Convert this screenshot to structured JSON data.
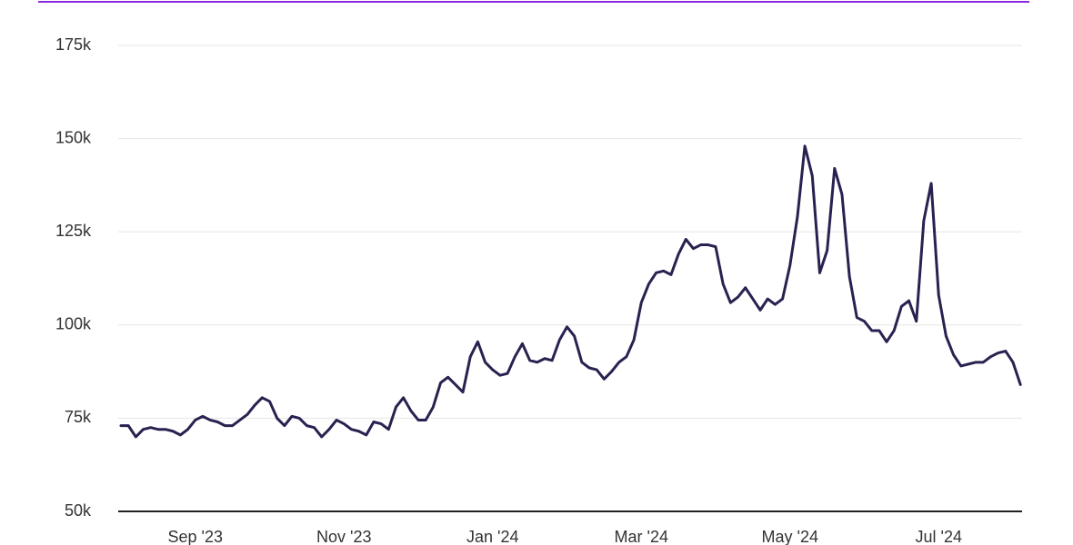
{
  "chart_data": {
    "type": "line",
    "categories": [
      null,
      null,
      null,
      null,
      null,
      null,
      null,
      null,
      null,
      null,
      "Sep '23",
      null,
      null,
      null,
      null,
      null,
      null,
      null,
      null,
      null,
      null,
      null,
      null,
      null,
      null,
      null,
      null,
      null,
      null,
      null,
      "Nov '23",
      null,
      null,
      null,
      null,
      null,
      null,
      null,
      null,
      null,
      null,
      null,
      null,
      null,
      null,
      null,
      null,
      null,
      null,
      null,
      "Jan '24",
      null,
      null,
      null,
      null,
      null,
      null,
      null,
      null,
      null,
      null,
      null,
      null,
      null,
      null,
      null,
      null,
      null,
      null,
      null,
      "Mar '24",
      null,
      null,
      null,
      null,
      null,
      null,
      null,
      null,
      null,
      null,
      null,
      null,
      null,
      null,
      null,
      null,
      null,
      null,
      null,
      "May '24",
      null,
      null,
      null,
      null,
      null,
      null,
      null,
      null,
      null,
      null,
      null,
      null,
      null,
      null,
      null,
      null,
      null,
      null,
      null,
      "Jul '24",
      null,
      null,
      null,
      null,
      null,
      null,
      null,
      null,
      null,
      null,
      null
    ],
    "series": [
      {
        "color": "#2a2150",
        "values": [
          73000,
          73000,
          70000,
          72000,
          72500,
          72000,
          72000,
          71500,
          70500,
          72000,
          74500,
          75500,
          74500,
          74000,
          73000,
          73000,
          74500,
          76000,
          78500,
          80500,
          79500,
          75000,
          73000,
          75500,
          75000,
          73000,
          72500,
          70000,
          72000,
          74500,
          73500,
          72000,
          71500,
          70500,
          74000,
          73500,
          72000,
          78000,
          80500,
          77000,
          74500,
          74500,
          78000,
          84500,
          86000,
          84000,
          82000,
          91500,
          95500,
          90000,
          88000,
          86500,
          87000,
          91500,
          95000,
          90500,
          90000,
          91000,
          90500,
          96000,
          99500,
          97000,
          90000,
          88500,
          88000,
          85500,
          87500,
          90000,
          91500,
          96000,
          106000,
          111000,
          114000,
          114500,
          113500,
          119000,
          123000,
          120500,
          121500,
          121500,
          121000,
          111000,
          106000,
          107500,
          110000,
          107000,
          104000,
          107000,
          105500,
          107000,
          116000,
          129000,
          148000,
          140000,
          114000,
          120000,
          142000,
          135000,
          113000,
          102000,
          101000,
          98500,
          98500,
          95500,
          98500,
          105000,
          106500,
          101000,
          128000,
          138000,
          108000,
          97000,
          92000,
          89000,
          89500,
          90000,
          90000,
          91500,
          92500,
          93000,
          90000,
          84000
        ]
      }
    ],
    "ylim": [
      50000,
      175000
    ],
    "yticks": [
      {
        "value": 50000,
        "label": "50k"
      },
      {
        "value": 75000,
        "label": "75k"
      },
      {
        "value": 100000,
        "label": "100k"
      },
      {
        "value": 125000,
        "label": "125k"
      },
      {
        "value": 150000,
        "label": "150k"
      },
      {
        "value": 175000,
        "label": "175k"
      }
    ],
    "grid": true
  }
}
